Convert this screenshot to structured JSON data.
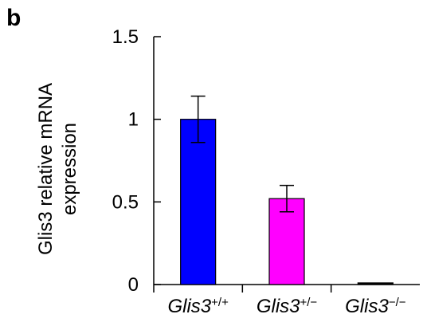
{
  "panel_label": "b",
  "chart_data": {
    "type": "bar",
    "ylabel": [
      "Glis3 relative mRNA",
      "expression"
    ],
    "ylim": [
      0,
      1.5
    ],
    "yticks": [
      0,
      0.5,
      1,
      1.5
    ],
    "ytick_labels": [
      "0",
      "0.5",
      "1",
      "1.5"
    ],
    "categories": [
      {
        "base": "Glis3",
        "sup": "+/+"
      },
      {
        "base": "Glis3",
        "sup": "+/−"
      },
      {
        "base": "Glis3",
        "sup": "−/−"
      }
    ],
    "values": [
      1.0,
      0.52,
      0.01
    ],
    "error": [
      0.14,
      0.08,
      0.0
    ],
    "colors": [
      "#0000ff",
      "#ff00ff",
      "#000000"
    ]
  }
}
